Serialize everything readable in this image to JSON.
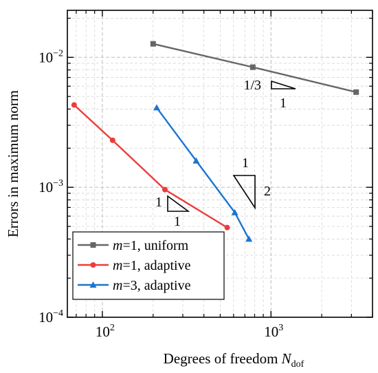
{
  "chart_data": {
    "type": "line",
    "title": "",
    "xlabel": "Degrees of freedom ",
    "xlabel_symbol": "N",
    "xlabel_subscript": "dof",
    "ylabel": "Errors in maximum norm",
    "xscale": "log",
    "yscale": "log",
    "xlim": [
      62,
      4000
    ],
    "ylim": [
      0.0001,
      0.023
    ],
    "x_ticks": [
      {
        "value": 100,
        "base": "10",
        "exp": "2"
      },
      {
        "value": 1000,
        "base": "10",
        "exp": "3"
      }
    ],
    "y_ticks": [
      {
        "value": 0.0001,
        "base": "10",
        "exp": "−4"
      },
      {
        "value": 0.001,
        "base": "10",
        "exp": "−3"
      },
      {
        "value": 0.01,
        "base": "10",
        "exp": "−2"
      }
    ],
    "grid": true,
    "legend_position": "bottom-left",
    "series": [
      {
        "name_prefix": "m",
        "name_rest": "=1, uniform",
        "color": "#666666",
        "marker": "square",
        "x": [
          200,
          780,
          3200
        ],
        "y": [
          0.0127,
          0.0084,
          0.0054
        ]
      },
      {
        "name_prefix": "m",
        "name_rest": "=1, adaptive",
        "color": "#ee3b3b",
        "marker": "circle",
        "x": [
          68,
          115,
          235,
          550
        ],
        "y": [
          0.0043,
          0.0023,
          0.00096,
          0.00049
        ]
      },
      {
        "name_prefix": "m",
        "name_rest": "=3, adaptive",
        "color": "#1a75d2",
        "marker": "triangle",
        "x": [
          210,
          360,
          610,
          740
        ],
        "y": [
          0.0041,
          0.0016,
          0.00064,
          0.0004
        ]
      }
    ],
    "slope_triangles": [
      {
        "run_label": "1",
        "rise_label": "1/3"
      },
      {
        "run_label": "1",
        "rise_label": "2"
      },
      {
        "run_label": "1",
        "rise_label": "1"
      }
    ]
  }
}
